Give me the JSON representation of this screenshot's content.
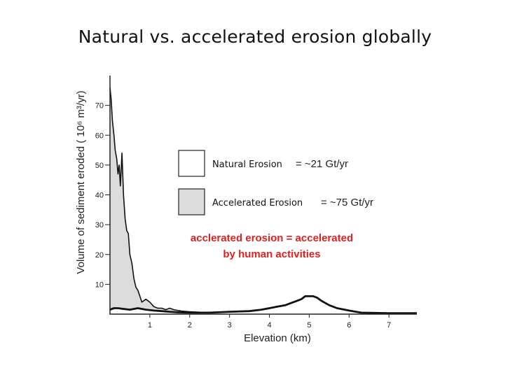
{
  "slide": {
    "title": "Natural vs. accelerated erosion globally"
  },
  "chart_data": {
    "type": "area",
    "title": "",
    "xlabel": "Elevation (km)",
    "ylabel": "Volume of sediment eroded ( 10⁶ m³/yr)",
    "xlim": [
      0,
      7.7
    ],
    "ylim": [
      0,
      80
    ],
    "xticks": [
      1,
      2,
      3,
      4,
      5,
      6,
      7
    ],
    "yticks": [
      10,
      20,
      30,
      40,
      50,
      60,
      70
    ],
    "grid": false,
    "series": [
      {
        "name": "Accelerated Erosion",
        "value_label": "= ~75 Gt/yr",
        "fill": "#dcdcdc",
        "x": [
          0,
          0.03,
          0.06,
          0.1,
          0.13,
          0.17,
          0.2,
          0.23,
          0.26,
          0.3,
          0.34,
          0.38,
          0.42,
          0.46,
          0.5,
          0.55,
          0.6,
          0.65,
          0.7,
          0.75,
          0.8,
          0.9,
          1.0,
          1.1,
          1.2,
          1.3,
          1.4,
          1.5,
          1.6,
          1.8,
          2.0,
          2.5,
          3.0,
          3.5,
          3.8,
          4.0,
          4.2,
          4.4,
          4.5,
          4.6,
          4.7,
          4.8,
          4.9,
          5.0,
          5.1,
          5.2,
          5.3,
          5.5,
          5.7,
          6.0,
          6.3,
          7.0,
          7.7
        ],
        "y": [
          76,
          72,
          65,
          60,
          55,
          52,
          47,
          50,
          43,
          54,
          40,
          32,
          28,
          27,
          20,
          17,
          12,
          9,
          8,
          6,
          4,
          5,
          4,
          2.5,
          2,
          2,
          1.5,
          2,
          1.5,
          1,
          0.8,
          0.5,
          0.8,
          1,
          1.5,
          2,
          2.5,
          3,
          3.5,
          4,
          4.5,
          5,
          6,
          6,
          6,
          5.5,
          4.5,
          3,
          2,
          1.2,
          0.5,
          0.3,
          0.3
        ]
      },
      {
        "name": "Natural Erosion",
        "value_label": "= ~21 Gt/yr",
        "fill": "#ffffff",
        "x": [
          0,
          0.1,
          0.2,
          0.3,
          0.5,
          0.7,
          0.9,
          1.1,
          1.3,
          1.5,
          1.7,
          2.0,
          2.5,
          3.0,
          3.5,
          3.8,
          4.0,
          4.2,
          4.4,
          4.5,
          4.6,
          4.7,
          4.8,
          4.9,
          5.0,
          5.1,
          5.2,
          5.3,
          5.5,
          5.7,
          6.0,
          6.3,
          7.0,
          7.7
        ],
        "y": [
          1.5,
          2,
          2,
          1.8,
          1.5,
          2,
          1.5,
          1.2,
          1,
          0.8,
          0.6,
          0.5,
          0.5,
          0.8,
          1,
          1.5,
          2,
          2.5,
          3,
          3.5,
          4,
          4.5,
          5,
          6,
          6,
          6,
          5.5,
          4.5,
          3,
          2,
          1.2,
          0.5,
          0.3,
          0.3
        ]
      }
    ],
    "annotation": [
      "acclerated erosion = accelerated",
      "by human activities"
    ],
    "annotation_color": "#e02020"
  }
}
